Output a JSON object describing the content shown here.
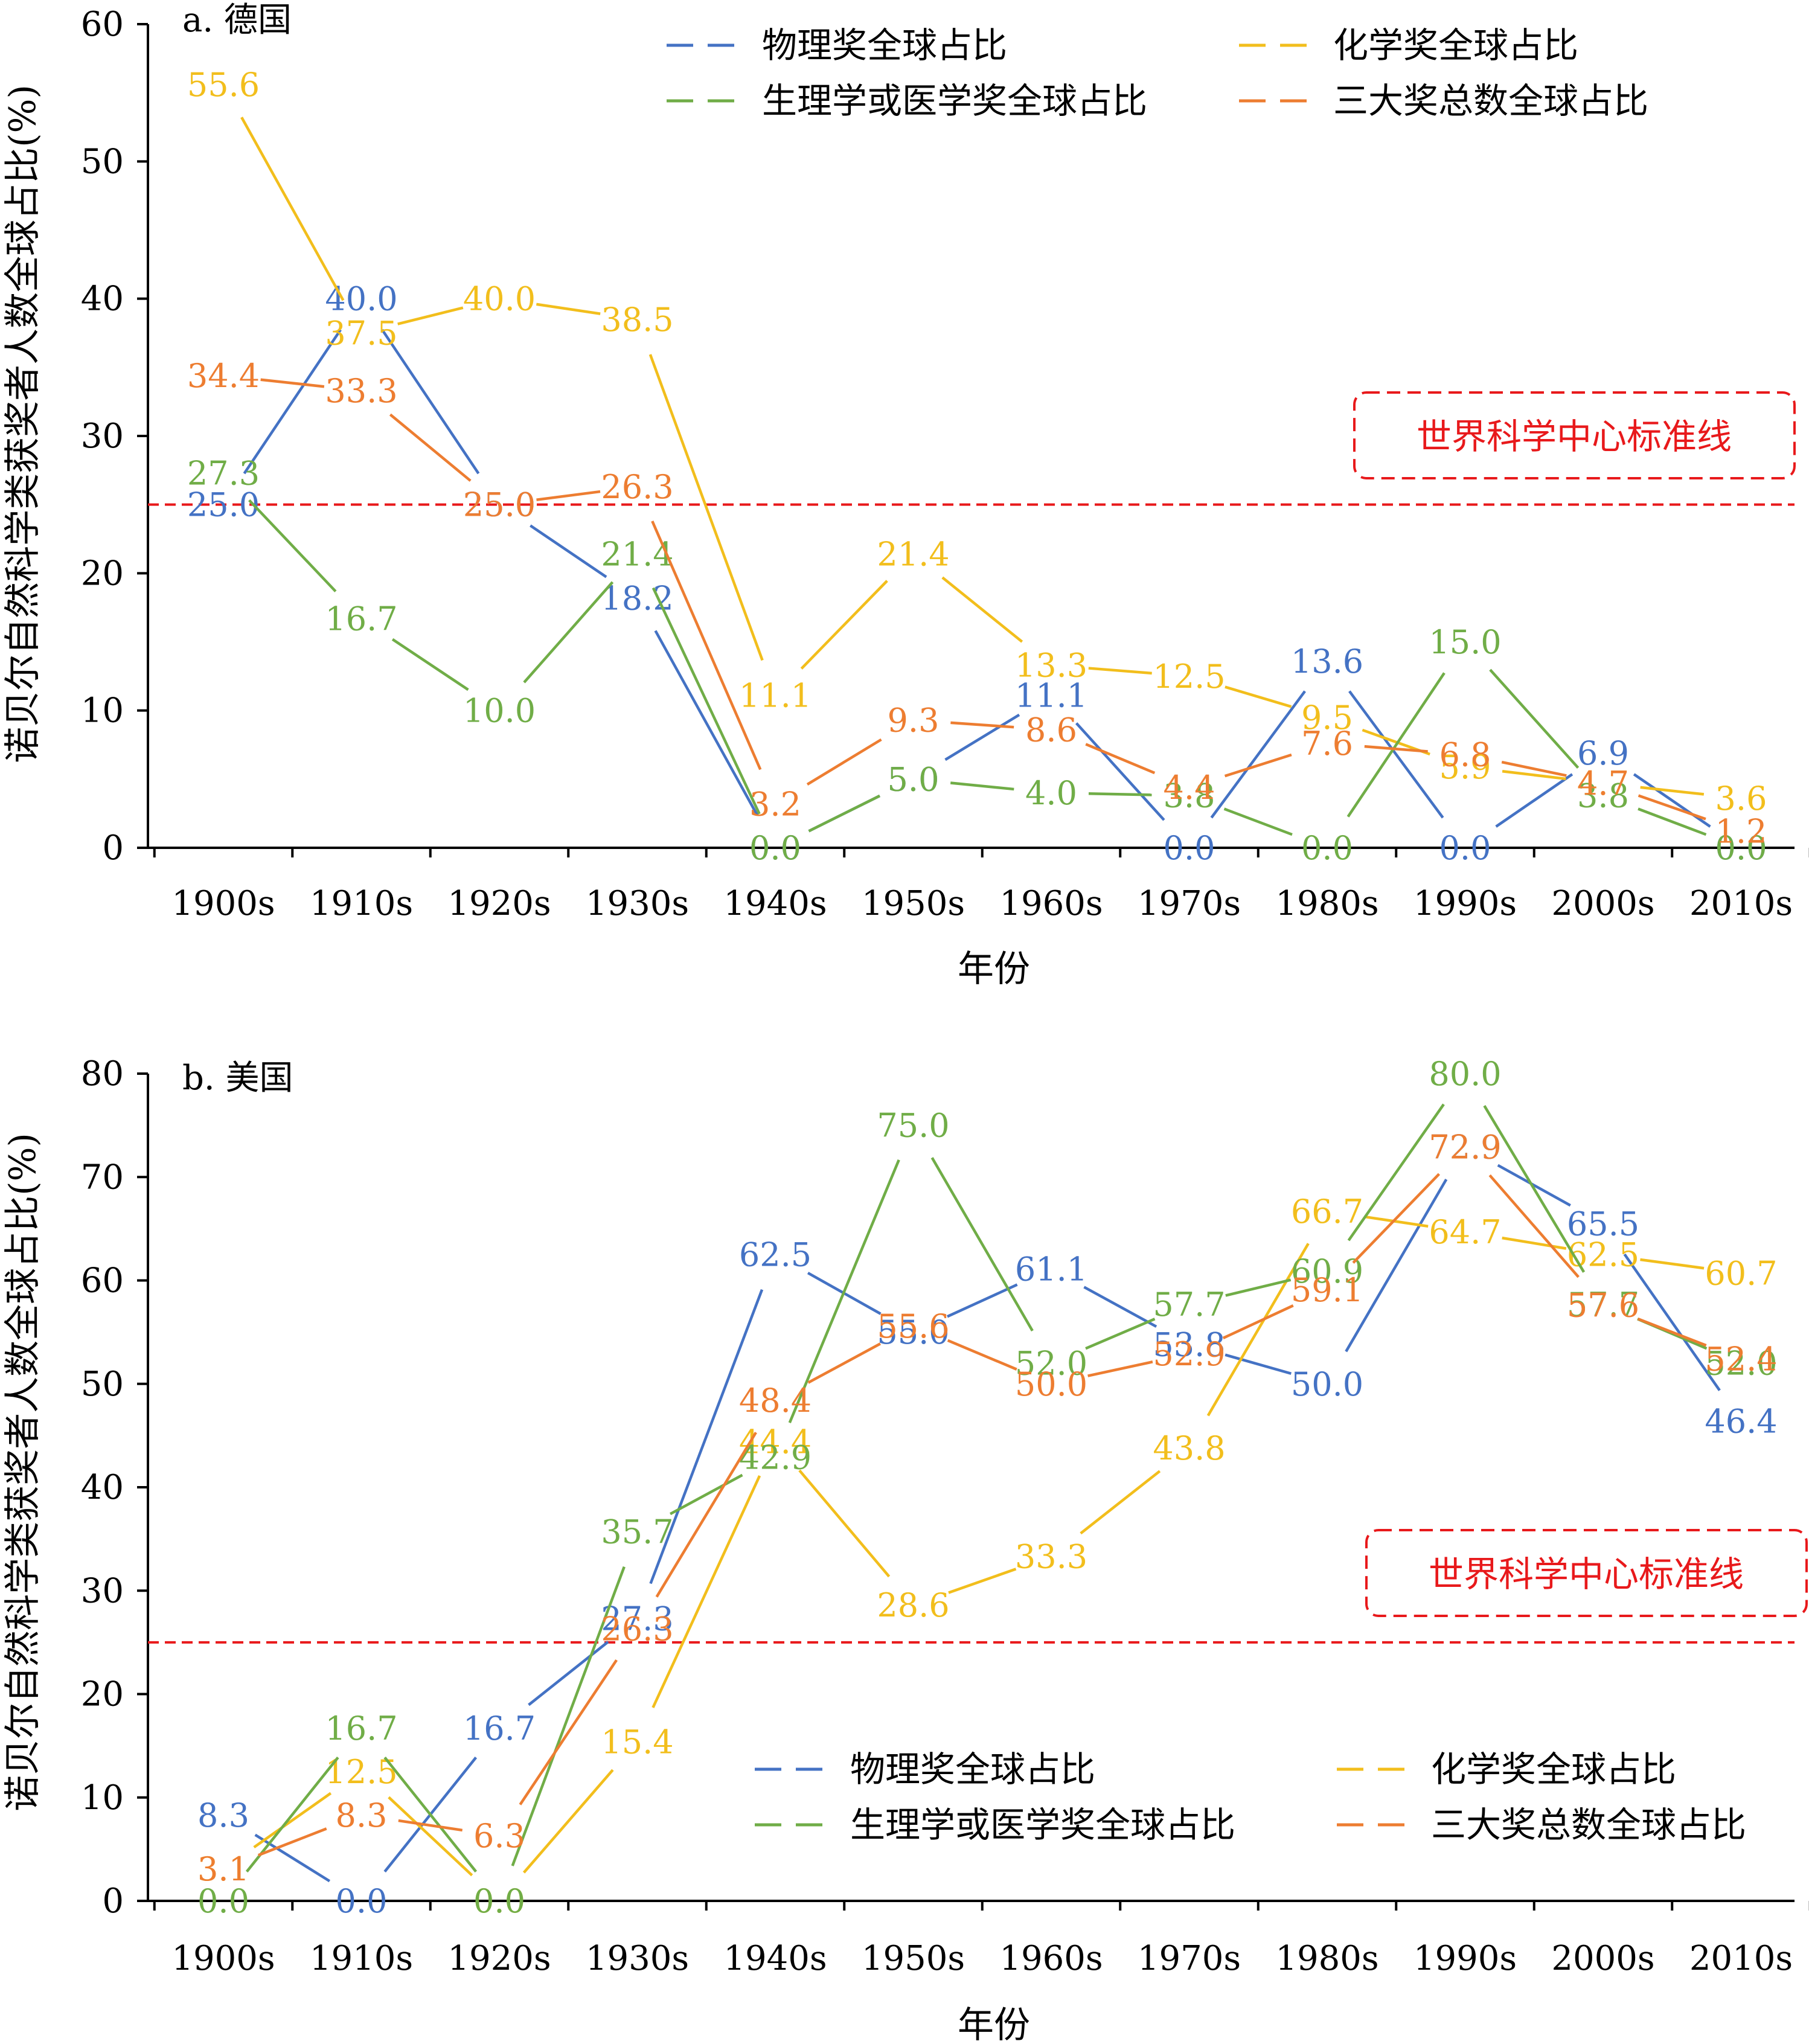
{
  "x_title": "年份",
  "y_title": "诺贝尔自然科学类获奖者人数全球占比(%)",
  "threshold_label": "世界科学中心标准线",
  "colors": {
    "physics": "#4472C4",
    "chemistry": "#F2BE1C",
    "medicine": "#70AD47",
    "total": "#ED7D31",
    "threshold": "#E8191B",
    "axis": "#000000"
  },
  "chart_data": [
    {
      "type": "line",
      "title": "a. 德国",
      "xlabel": "年份",
      "ylabel": "诺贝尔自然科学类获奖者人数全球占比(%)",
      "categories": [
        "1900s",
        "1910s",
        "1920s",
        "1930s",
        "1940s",
        "1950s",
        "1960s",
        "1970s",
        "1980s",
        "1990s",
        "2000s",
        "2010s"
      ],
      "ylim": [
        0,
        60
      ],
      "yticks": [
        0,
        10,
        20,
        30,
        40,
        50,
        60
      ],
      "threshold": 25,
      "threshold_label": "世界科学中心标准线",
      "legend_position": "top-right",
      "series": [
        {
          "key": "physics",
          "name": "物理奖全球占比",
          "values": [
            25.0,
            40.0,
            25.0,
            18.2,
            0.0,
            5.0,
            11.1,
            0.0,
            13.6,
            0.0,
            6.9,
            0.0
          ]
        },
        {
          "key": "chemistry",
          "name": "化学奖全球占比",
          "values": [
            55.6,
            37.5,
            40.0,
            38.5,
            11.1,
            21.4,
            13.3,
            12.5,
            9.5,
            5.9,
            4.7,
            3.6
          ]
        },
        {
          "key": "medicine",
          "name": "生理学或医学奖全球占比",
          "values": [
            27.3,
            16.7,
            10.0,
            21.4,
            0.0,
            5.0,
            4.0,
            3.8,
            0.0,
            15.0,
            3.8,
            0.0
          ]
        },
        {
          "key": "total",
          "name": "三大奖总数全球占比",
          "values": [
            34.4,
            33.3,
            25.0,
            26.3,
            3.2,
            9.3,
            8.6,
            4.4,
            7.6,
            6.8,
            4.7,
            1.2
          ]
        }
      ]
    },
    {
      "type": "line",
      "title": "b. 美国",
      "xlabel": "年份",
      "ylabel": "诺贝尔自然科学类获奖者人数全球占比(%)",
      "categories": [
        "1900s",
        "1910s",
        "1920s",
        "1930s",
        "1940s",
        "1950s",
        "1960s",
        "1970s",
        "1980s",
        "1990s",
        "2000s",
        "2010s"
      ],
      "ylim": [
        0,
        80
      ],
      "yticks": [
        0,
        10,
        20,
        30,
        40,
        50,
        60,
        70,
        80
      ],
      "threshold": 25,
      "threshold_label": "世界科学中心标准线",
      "legend_position": "bottom-right",
      "series": [
        {
          "key": "physics",
          "name": "物理奖全球占比",
          "values": [
            8.3,
            0.0,
            16.7,
            27.3,
            62.5,
            55.0,
            61.1,
            53.8,
            50.0,
            72.9,
            65.5,
            46.4
          ]
        },
        {
          "key": "chemistry",
          "name": "化学奖全球占比",
          "values": [
            3.1,
            12.5,
            0.0,
            15.4,
            44.4,
            28.6,
            33.3,
            43.8,
            66.7,
            64.7,
            62.5,
            60.7
          ]
        },
        {
          "key": "medicine",
          "name": "生理学或医学奖全球占比",
          "values": [
            0.0,
            16.7,
            0.0,
            35.7,
            42.9,
            75.0,
            52.0,
            57.7,
            60.9,
            80.0,
            57.7,
            52.0
          ]
        },
        {
          "key": "total",
          "name": "三大奖总数全球占比",
          "values": [
            3.1,
            8.3,
            6.3,
            26.3,
            48.4,
            55.6,
            50.0,
            52.9,
            59.1,
            72.9,
            57.6,
            52.4
          ]
        }
      ]
    }
  ]
}
